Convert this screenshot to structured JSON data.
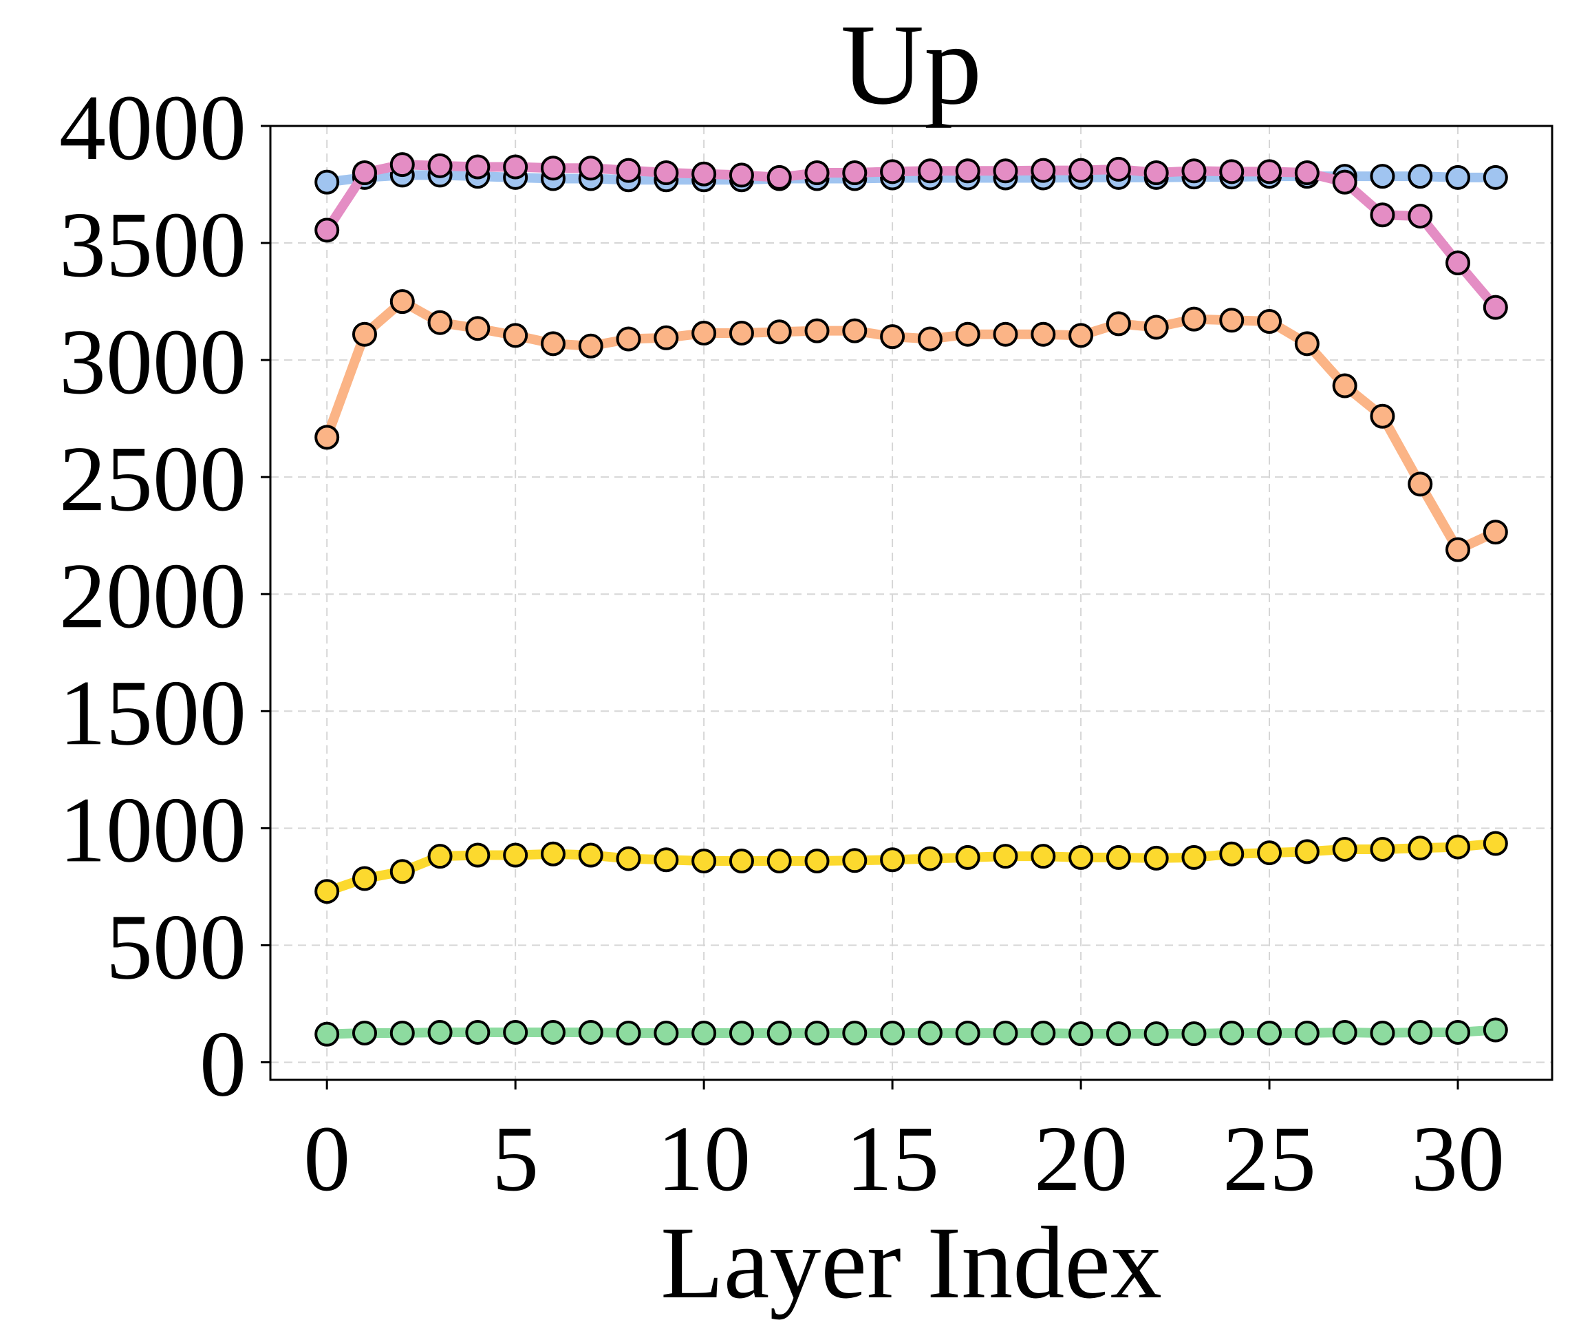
{
  "chart_data": {
    "type": "line",
    "title": "Up",
    "xlabel": "Layer Index",
    "ylabel": "",
    "xlim": [
      -1.5,
      32.5
    ],
    "ylim": [
      -75,
      4000
    ],
    "xticks": [
      0,
      5,
      10,
      15,
      20,
      25,
      30
    ],
    "yticks": [
      0,
      500,
      1000,
      1500,
      2000,
      2500,
      3000,
      3500,
      4000
    ],
    "grid": true,
    "x": [
      0,
      1,
      2,
      3,
      4,
      5,
      6,
      7,
      8,
      9,
      10,
      11,
      12,
      13,
      14,
      15,
      16,
      17,
      18,
      19,
      20,
      21,
      22,
      23,
      24,
      25,
      26,
      27,
      28,
      29,
      30,
      31
    ],
    "series": [
      {
        "color": "#a0c4f0",
        "values": [
          3760,
          3780,
          3790,
          3790,
          3785,
          3780,
          3775,
          3775,
          3770,
          3770,
          3770,
          3770,
          3775,
          3775,
          3775,
          3778,
          3778,
          3778,
          3778,
          3778,
          3780,
          3780,
          3780,
          3782,
          3782,
          3785,
          3785,
          3785,
          3785,
          3785,
          3780,
          3780
        ]
      },
      {
        "color": "#e48dc4",
        "values": [
          3555,
          3800,
          3835,
          3830,
          3825,
          3825,
          3820,
          3820,
          3810,
          3800,
          3795,
          3790,
          3780,
          3800,
          3800,
          3805,
          3808,
          3808,
          3808,
          3810,
          3810,
          3815,
          3800,
          3808,
          3805,
          3805,
          3800,
          3760,
          3620,
          3615,
          3415,
          3225
        ]
      },
      {
        "color": "#fbb486",
        "values": [
          2670,
          3110,
          3250,
          3160,
          3135,
          3105,
          3070,
          3060,
          3090,
          3095,
          3115,
          3115,
          3120,
          3125,
          3125,
          3100,
          3090,
          3110,
          3110,
          3110,
          3105,
          3155,
          3140,
          3175,
          3170,
          3165,
          3070,
          2890,
          2760,
          2470,
          2190,
          2265
        ]
      },
      {
        "color": "#fcd92e",
        "values": [
          730,
          785,
          815,
          880,
          885,
          885,
          890,
          885,
          870,
          865,
          860,
          860,
          860,
          860,
          862,
          865,
          870,
          875,
          880,
          880,
          875,
          875,
          872,
          875,
          890,
          895,
          900,
          910,
          910,
          915,
          920,
          935
        ]
      },
      {
        "color": "#8ddb9f",
        "values": [
          120,
          125,
          125,
          128,
          128,
          128,
          128,
          128,
          125,
          125,
          125,
          125,
          125,
          125,
          125,
          125,
          125,
          125,
          125,
          125,
          122,
          122,
          122,
          122,
          125,
          125,
          125,
          128,
          125,
          128,
          128,
          138
        ]
      }
    ]
  }
}
